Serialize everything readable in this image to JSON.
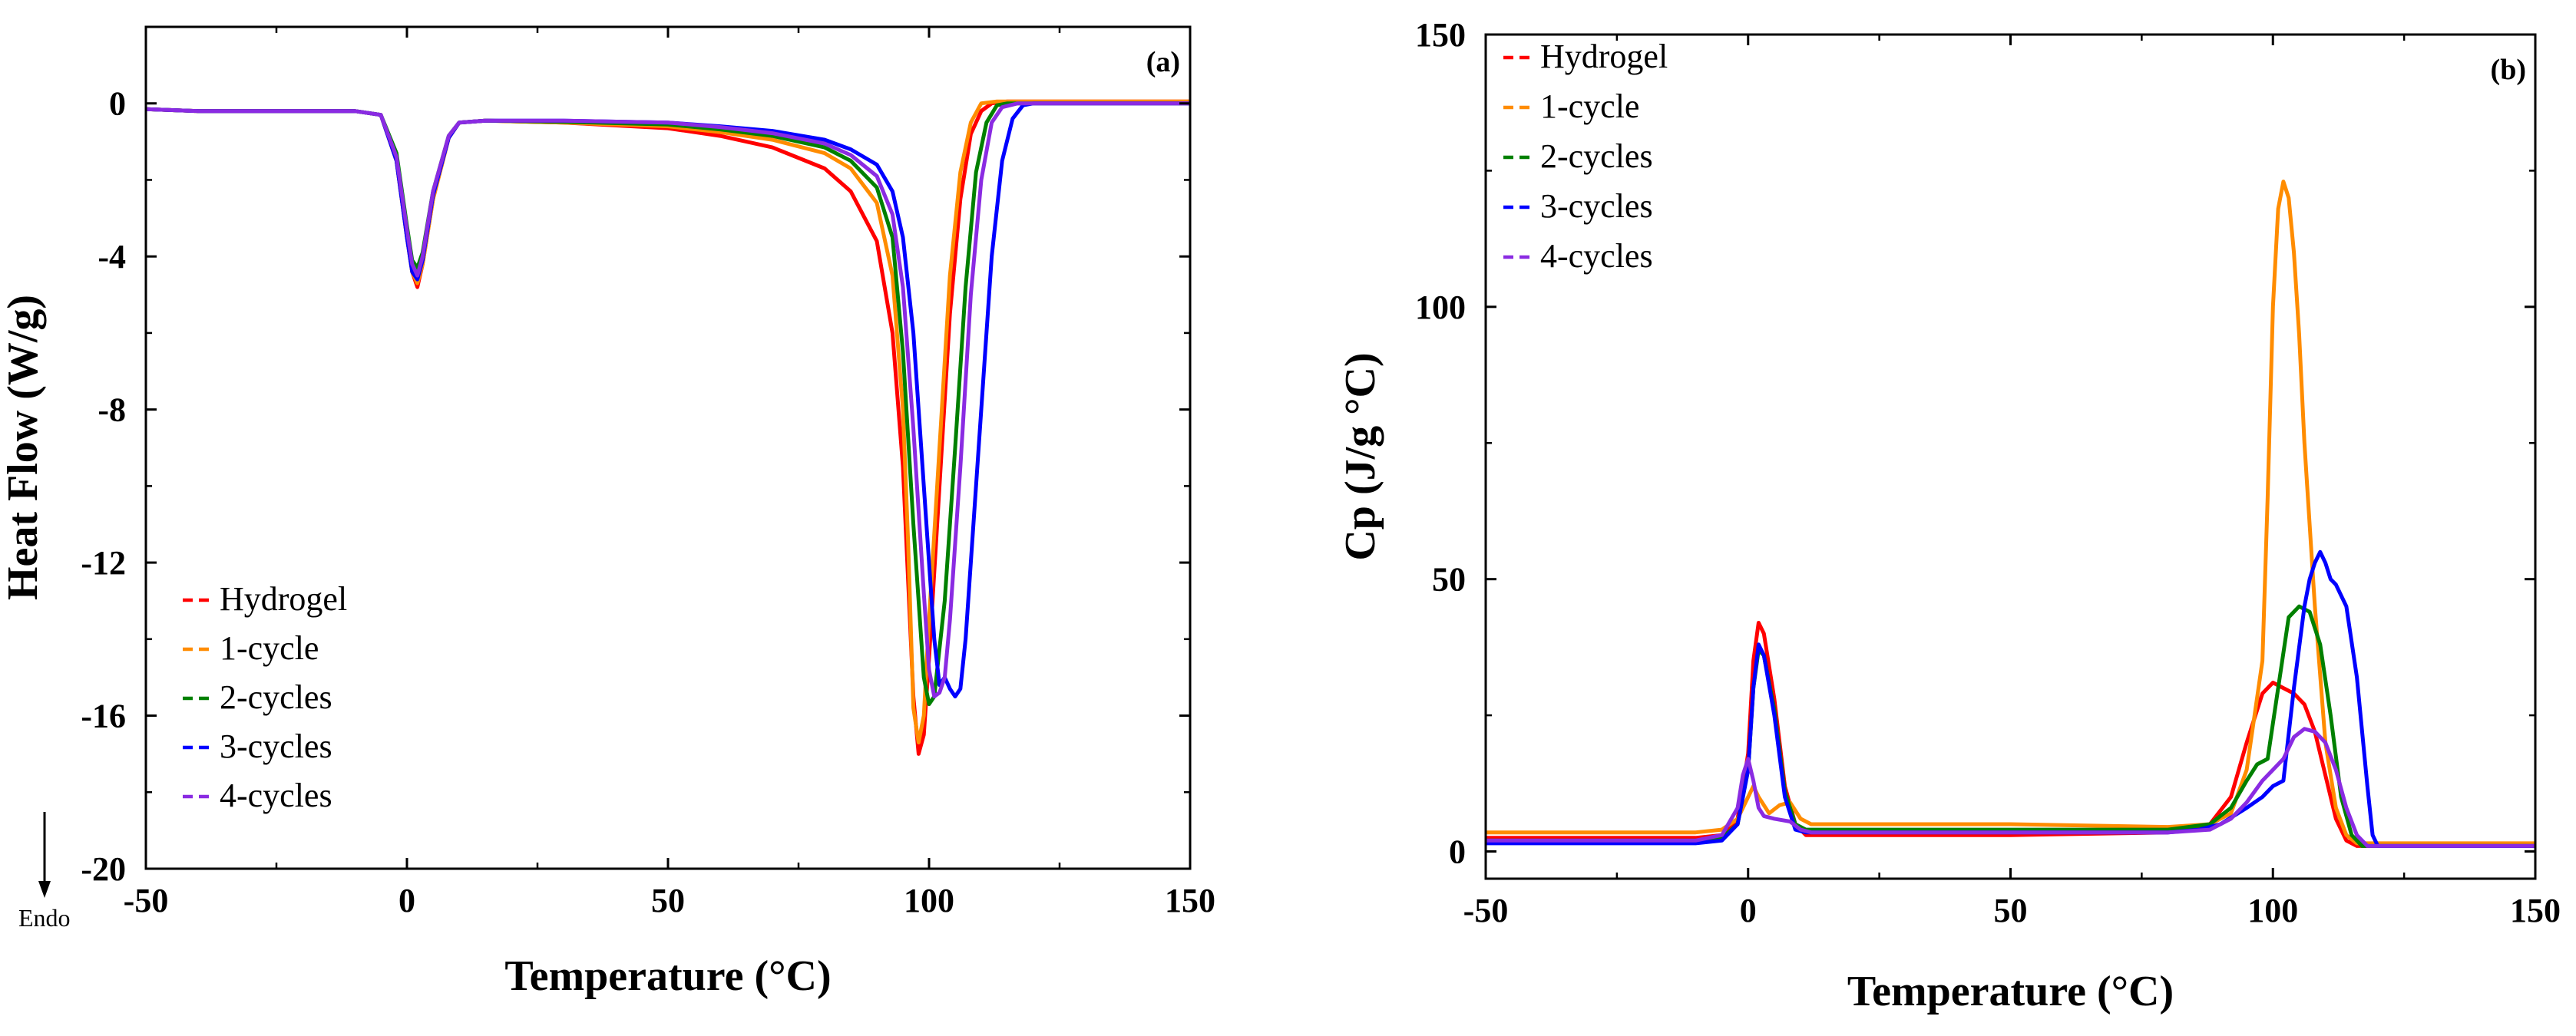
{
  "chart_data": [
    {
      "type": "line",
      "panel": "(a)",
      "title": "",
      "xlabel": "Temperature (°C)",
      "ylabel": "Heat Flow (W/g)",
      "xlim": [
        -50,
        150
      ],
      "ylim": [
        -20,
        2
      ],
      "xticks": [
        -50,
        0,
        50,
        100,
        150
      ],
      "yticks": [
        0,
        -4,
        -8,
        -12,
        -16,
        -20
      ],
      "xtick_labels": [
        "-50",
        "0",
        "50",
        "100",
        "150"
      ],
      "ytick_labels": [
        "0",
        "-4",
        "-8",
        "-12",
        "-16",
        "-20"
      ],
      "grid": false,
      "legend_position": "bottom-left",
      "annotation": "Endo",
      "series": [
        {
          "name": "Hydrogel",
          "color": "#ff0000",
          "x": [
            -50,
            -40,
            -10,
            -5,
            -2,
            0,
            1,
            2,
            3,
            5,
            8,
            10,
            15,
            30,
            50,
            60,
            70,
            80,
            85,
            90,
            93,
            95,
            97,
            98,
            99,
            100,
            102,
            104,
            106,
            108,
            110,
            112,
            115,
            120,
            150
          ],
          "y": [
            -0.15,
            -0.2,
            -0.2,
            -0.3,
            -1.5,
            -3.5,
            -4.4,
            -4.8,
            -4.2,
            -2.5,
            -0.9,
            -0.5,
            -0.45,
            -0.5,
            -0.65,
            -0.85,
            -1.15,
            -1.7,
            -2.3,
            -3.6,
            -6.0,
            -9.5,
            -15.5,
            -17.0,
            -16.5,
            -14.5,
            -10.0,
            -5.5,
            -2.5,
            -0.8,
            -0.2,
            0,
            0.05,
            0.05,
            0.05
          ]
        },
        {
          "name": "1-cycle",
          "color": "#ff8c00",
          "x": [
            -50,
            -40,
            -10,
            -5,
            -2,
            0,
            1,
            2,
            3,
            5,
            8,
            10,
            15,
            30,
            50,
            60,
            70,
            80,
            85,
            90,
            93,
            95,
            96,
            97,
            98,
            99,
            100,
            102,
            104,
            106,
            108,
            110,
            113,
            120,
            150
          ],
          "y": [
            -0.15,
            -0.2,
            -0.2,
            -0.3,
            -1.5,
            -3.5,
            -4.4,
            -4.7,
            -4.2,
            -2.5,
            -0.9,
            -0.5,
            -0.45,
            -0.5,
            -0.6,
            -0.75,
            -0.95,
            -1.3,
            -1.7,
            -2.6,
            -4.5,
            -8.0,
            -11.5,
            -15.8,
            -16.7,
            -16.0,
            -13.5,
            -9.0,
            -4.5,
            -1.8,
            -0.5,
            0,
            0.05,
            0.05,
            0.05
          ]
        },
        {
          "name": "2-cycles",
          "color": "#008000",
          "x": [
            -50,
            -40,
            -10,
            -5,
            -2,
            0,
            1,
            2,
            3,
            5,
            8,
            10,
            15,
            30,
            50,
            60,
            70,
            80,
            85,
            90,
            93,
            95,
            97,
            99,
            100,
            101,
            103,
            105,
            107,
            109,
            111,
            113,
            115,
            120,
            150
          ],
          "y": [
            -0.15,
            -0.2,
            -0.2,
            -0.3,
            -1.3,
            -3.2,
            -4.1,
            -4.3,
            -3.9,
            -2.3,
            -0.85,
            -0.5,
            -0.45,
            -0.48,
            -0.55,
            -0.68,
            -0.85,
            -1.15,
            -1.5,
            -2.2,
            -3.5,
            -6.5,
            -11.0,
            -15.0,
            -15.7,
            -15.5,
            -13.0,
            -9.0,
            -4.8,
            -1.8,
            -0.5,
            -0.05,
            0,
            0,
            0
          ]
        },
        {
          "name": "3-cycles",
          "color": "#0000ff",
          "x": [
            -50,
            -40,
            -10,
            -5,
            -2,
            0,
            1,
            2,
            3,
            5,
            8,
            10,
            15,
            30,
            50,
            60,
            70,
            80,
            85,
            90,
            93,
            95,
            97,
            99,
            101,
            102,
            103,
            104,
            105,
            106,
            107,
            108,
            110,
            112,
            114,
            116,
            118,
            120,
            150
          ],
          "y": [
            -0.15,
            -0.2,
            -0.2,
            -0.3,
            -1.5,
            -3.5,
            -4.4,
            -4.6,
            -4.1,
            -2.4,
            -0.9,
            -0.5,
            -0.45,
            -0.45,
            -0.5,
            -0.6,
            -0.72,
            -0.95,
            -1.2,
            -1.6,
            -2.3,
            -3.5,
            -6.0,
            -10.0,
            -14.0,
            -15.2,
            -15.0,
            -15.3,
            -15.5,
            -15.3,
            -14.0,
            -12.0,
            -8.0,
            -4.0,
            -1.5,
            -0.4,
            -0.05,
            0,
            0
          ]
        },
        {
          "name": "4-cycles",
          "color": "#8a2be2",
          "x": [
            -50,
            -40,
            -10,
            -5,
            -2,
            0,
            1,
            2,
            3,
            5,
            8,
            10,
            15,
            30,
            50,
            60,
            70,
            80,
            85,
            90,
            93,
            95,
            97,
            99,
            100,
            101,
            102,
            103,
            104,
            106,
            108,
            110,
            112,
            114,
            117,
            120,
            150
          ],
          "y": [
            -0.15,
            -0.2,
            -0.2,
            -0.3,
            -1.4,
            -3.3,
            -4.2,
            -4.5,
            -4.0,
            -2.3,
            -0.85,
            -0.5,
            -0.45,
            -0.45,
            -0.5,
            -0.62,
            -0.78,
            -1.05,
            -1.35,
            -1.9,
            -2.9,
            -4.8,
            -8.5,
            -12.8,
            -14.8,
            -15.5,
            -15.4,
            -15.0,
            -13.5,
            -9.5,
            -5.0,
            -2.0,
            -0.5,
            -0.1,
            0,
            0,
            0
          ]
        }
      ]
    },
    {
      "type": "line",
      "panel": "(b)",
      "title": "",
      "xlabel": "Temperature (°C)",
      "ylabel": "Cp (J/g °C)",
      "xlim": [
        -50,
        150
      ],
      "ylim": [
        -5,
        150
      ],
      "xticks": [
        -50,
        0,
        50,
        100,
        150
      ],
      "yticks": [
        0,
        50,
        100,
        150
      ],
      "xtick_labels": [
        "-50",
        "0",
        "50",
        "100",
        "150"
      ],
      "ytick_labels": [
        "0",
        "50",
        "100",
        "150"
      ],
      "grid": false,
      "legend_position": "top-left",
      "series": [
        {
          "name": "Hydrogel",
          "color": "#ff0000",
          "x": [
            -50,
            -10,
            -5,
            -2,
            0,
            1,
            2,
            3,
            5,
            7,
            9,
            11,
            13,
            20,
            50,
            80,
            88,
            92,
            95,
            98,
            100,
            102,
            104,
            106,
            108,
            110,
            112,
            114,
            116,
            120,
            150
          ],
          "y": [
            2.5,
            2.5,
            3,
            6,
            18,
            35,
            42,
            40,
            28,
            12,
            5,
            3,
            3,
            3,
            3,
            3.5,
            5,
            10,
            20,
            29,
            31,
            30,
            29,
            27,
            22,
            14,
            6,
            2,
            1,
            1,
            1
          ]
        },
        {
          "name": "1-cycle",
          "color": "#ff8c00",
          "x": [
            -50,
            -10,
            -5,
            -2,
            0,
            1,
            2,
            4,
            6,
            8,
            10,
            12,
            20,
            50,
            80,
            88,
            92,
            95,
            98,
            99,
            100,
            101,
            102,
            103,
            104,
            105,
            106,
            108,
            110,
            112,
            114,
            116,
            120,
            150
          ],
          "y": [
            3.5,
            3.5,
            4,
            6,
            10,
            12,
            10,
            7,
            8.5,
            9,
            6,
            5,
            5,
            5,
            4.5,
            5,
            7,
            15,
            35,
            65,
            100,
            118,
            123,
            120,
            110,
            95,
            75,
            45,
            20,
            8,
            3,
            1.5,
            1.5,
            1.5
          ]
        },
        {
          "name": "2-cycles",
          "color": "#008000",
          "x": [
            -50,
            -10,
            -5,
            -2,
            0,
            1,
            2,
            3,
            5,
            7,
            9,
            11,
            13,
            20,
            50,
            80,
            88,
            92,
            95,
            97,
            99,
            101,
            103,
            105,
            107,
            109,
            111,
            113,
            115,
            117,
            120,
            150
          ],
          "y": [
            2,
            2,
            2.5,
            5,
            15,
            30,
            37,
            36,
            26,
            11,
            5,
            4,
            4,
            4,
            4,
            4,
            5,
            8,
            13,
            16,
            17,
            30,
            43,
            45,
            44,
            38,
            25,
            10,
            3,
            1,
            1,
            1
          ]
        },
        {
          "name": "3-cycles",
          "color": "#0000ff",
          "x": [
            -50,
            -10,
            -5,
            -2,
            0,
            1,
            2,
            3,
            5,
            7,
            9,
            11,
            13,
            20,
            50,
            80,
            86,
            90,
            95,
            98,
            100,
            102,
            104,
            106,
            107,
            108,
            109,
            110,
            111,
            112,
            114,
            116,
            118,
            119,
            120,
            150
          ],
          "y": [
            1.5,
            1.5,
            2,
            5,
            15,
            30,
            38,
            36,
            25,
            10,
            4,
            3.5,
            3.5,
            3.5,
            3.5,
            3.5,
            4,
            5,
            8,
            10,
            12,
            13,
            30,
            45,
            50,
            53,
            55,
            53,
            50,
            49,
            45,
            32,
            12,
            3,
            1,
            1
          ]
        },
        {
          "name": "4-cycles",
          "color": "#8a2be2",
          "x": [
            -50,
            -10,
            -5,
            -2,
            -1,
            0,
            1,
            2,
            3,
            5,
            8,
            10,
            12,
            20,
            50,
            80,
            88,
            92,
            95,
            98,
            100,
            102,
            104,
            106,
            108,
            110,
            112,
            114,
            116,
            118,
            120,
            150
          ],
          "y": [
            2,
            2,
            3,
            8,
            14,
            17,
            13,
            8,
            6.5,
            6,
            5.5,
            4,
            3.5,
            3.5,
            3.5,
            3.5,
            4,
            6,
            9,
            13,
            15,
            17,
            21,
            22.5,
            22,
            20,
            15,
            8,
            3,
            1,
            1,
            1
          ]
        }
      ]
    }
  ]
}
